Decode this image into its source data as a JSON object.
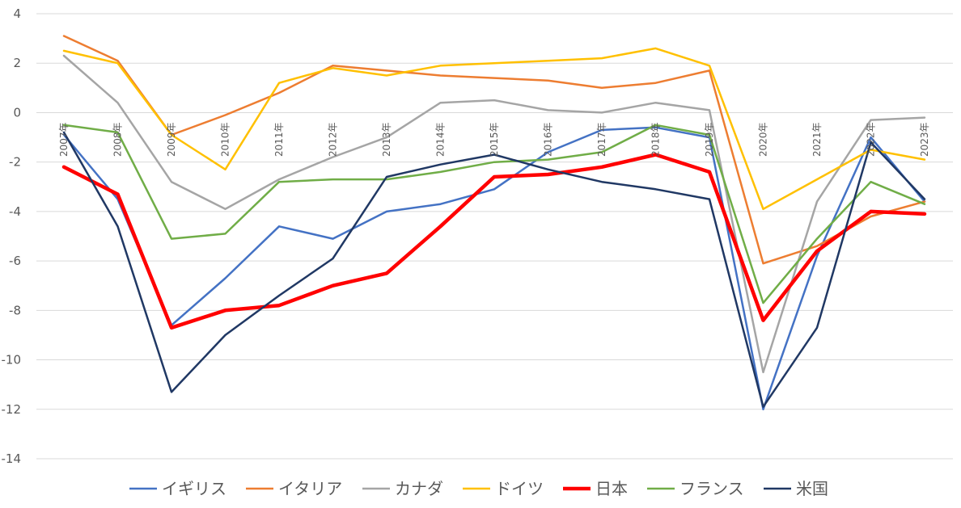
{
  "chart_data": {
    "type": "line",
    "title": "",
    "xlabel": "",
    "ylabel": "",
    "ylim": [
      -14,
      4
    ],
    "yticks": [
      4,
      2,
      0,
      -2,
      -4,
      -6,
      -8,
      -10,
      -12,
      -14
    ],
    "grid": true,
    "legend_position": "bottom",
    "categories": [
      "2007年",
      "2008年",
      "2009年",
      "2010年",
      "2011年",
      "2012年",
      "2013年",
      "2014年",
      "2015年",
      "2016年",
      "2017年",
      "2018年",
      "2019年",
      "2020年",
      "2021年",
      "2022年",
      "2023年"
    ],
    "series": [
      {
        "name": "イギリス",
        "color": "#4472C4",
        "width": 2.5,
        "values": [
          -0.9,
          -3.5,
          -8.6,
          -6.7,
          -4.6,
          -5.1,
          -4.0,
          -3.7,
          -3.1,
          -1.6,
          -0.7,
          -0.6,
          -1.0,
          -12.0,
          -5.8,
          -1.0,
          -3.6
        ]
      },
      {
        "name": "イタリア",
        "color": "#ED7D31",
        "width": 2.5,
        "values": [
          3.1,
          2.1,
          -0.9,
          -0.1,
          0.8,
          1.9,
          1.7,
          1.5,
          1.4,
          1.3,
          1.0,
          1.2,
          1.7,
          -6.1,
          -5.4,
          -4.2,
          -3.6
        ]
      },
      {
        "name": "カナダ",
        "color": "#A5A5A5",
        "width": 2.5,
        "values": [
          2.3,
          0.4,
          -2.8,
          -3.9,
          -2.7,
          -1.8,
          -1.0,
          0.4,
          0.5,
          0.1,
          0.0,
          0.4,
          0.1,
          -10.5,
          -3.6,
          -0.3,
          -0.2
        ]
      },
      {
        "name": "ドイツ",
        "color": "#FFC000",
        "width": 2.5,
        "values": [
          2.5,
          2.0,
          -0.9,
          -2.3,
          1.2,
          1.8,
          1.5,
          1.9,
          2.0,
          2.1,
          2.2,
          2.6,
          1.9,
          -3.9,
          -2.7,
          -1.5,
          -1.9
        ]
      },
      {
        "name": "日本",
        "color": "#FF0000",
        "width": 4.5,
        "values": [
          -2.2,
          -3.3,
          -8.7,
          -8.0,
          -7.8,
          -7.0,
          -6.5,
          -4.6,
          -2.6,
          -2.5,
          -2.2,
          -1.7,
          -2.4,
          -8.4,
          -5.6,
          -4.0,
          -4.1
        ]
      },
      {
        "name": "フランス",
        "color": "#70AD47",
        "width": 2.5,
        "values": [
          -0.5,
          -0.8,
          -5.1,
          -4.9,
          -2.8,
          -2.7,
          -2.7,
          -2.4,
          -2.0,
          -1.9,
          -1.6,
          -0.5,
          -0.9,
          -7.7,
          -5.1,
          -2.8,
          -3.7
        ]
      },
      {
        "name": "米国",
        "color": "#203864",
        "width": 2.5,
        "values": [
          -0.8,
          -4.6,
          -11.3,
          -9.0,
          -7.4,
          -5.9,
          -2.6,
          -2.1,
          -1.7,
          -2.3,
          -2.8,
          -3.1,
          -3.5,
          -11.9,
          -8.7,
          -1.2,
          -3.5
        ]
      }
    ]
  }
}
